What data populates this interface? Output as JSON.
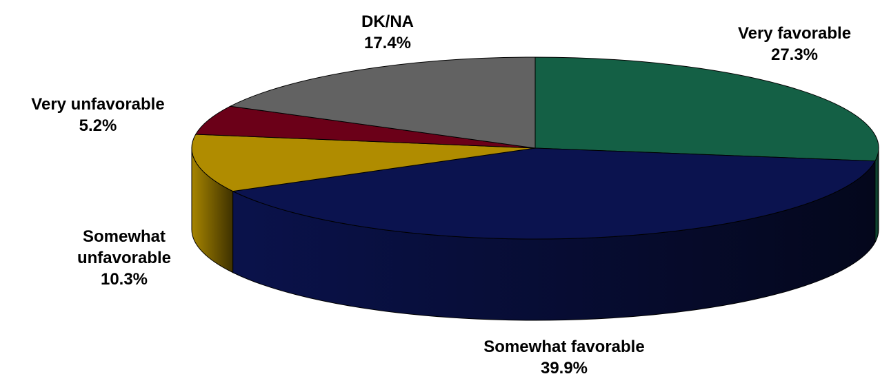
{
  "chart_data": {
    "type": "pie3d",
    "categories": [
      "Very favorable",
      "Somewhat favorable",
      "Somewhat unfavorable",
      "Very unfavorable",
      "DK/NA"
    ],
    "values": [
      27.3,
      39.9,
      10.3,
      5.2,
      17.4
    ],
    "value_labels": [
      "27.3%",
      "39.9%",
      "10.3%",
      "5.2%",
      "17.4%"
    ],
    "colors": [
      "#146045",
      "#0b134f",
      "#b08c00",
      "#6b0018",
      "#626262"
    ]
  }
}
